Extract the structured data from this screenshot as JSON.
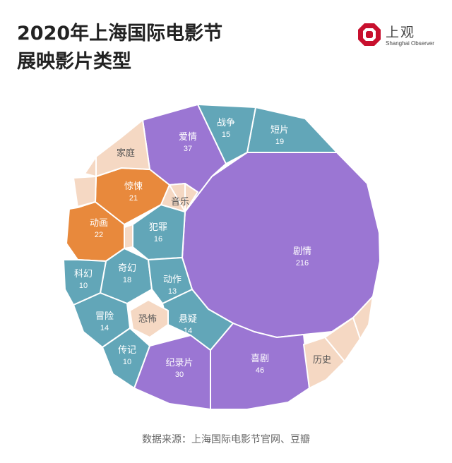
{
  "title": {
    "line1": "2020年上海国际电影节",
    "line2": "展映影片类型"
  },
  "logo": {
    "name": "上观",
    "subtitle": "Shanghai Observer"
  },
  "source": "数据来源：上海国际电影节官网、豆瓣",
  "colors": {
    "purple": "#9b76d3",
    "teal": "#62a6b8",
    "orange": "#e8893c",
    "peach": "#f5d8c3",
    "outline": "#ffffff",
    "label": "#ffffff",
    "peach_label": "#555555",
    "logo_red": "#c8102e"
  },
  "chart_data": {
    "type": "voronoi-treemap",
    "cells": [
      {
        "name": "剧情",
        "value": 216,
        "color": "purple"
      },
      {
        "name": "喜剧",
        "value": 46,
        "color": "purple"
      },
      {
        "name": "爱情",
        "value": 37,
        "color": "purple"
      },
      {
        "name": "纪录片",
        "value": 30,
        "color": "purple"
      },
      {
        "name": "动画",
        "value": 22,
        "color": "orange"
      },
      {
        "name": "惊悚",
        "value": 21,
        "color": "orange"
      },
      {
        "name": "短片",
        "value": 19,
        "color": "teal"
      },
      {
        "name": "奇幻",
        "value": 18,
        "color": "teal"
      },
      {
        "name": "犯罪",
        "value": 16,
        "color": "teal"
      },
      {
        "name": "战争",
        "value": 15,
        "color": "teal"
      },
      {
        "name": "冒险",
        "value": 14,
        "color": "teal"
      },
      {
        "name": "悬疑",
        "value": 14,
        "color": "teal"
      },
      {
        "name": "动作",
        "value": 13,
        "color": "teal"
      },
      {
        "name": "科幻",
        "value": 10,
        "color": "teal"
      },
      {
        "name": "传记",
        "value": 10,
        "color": "teal"
      },
      {
        "name": "家庭",
        "value": null,
        "color": "peach"
      },
      {
        "name": "音乐",
        "value": null,
        "color": "peach"
      },
      {
        "name": "恐怖",
        "value": null,
        "color": "peach"
      },
      {
        "name": "历史",
        "value": null,
        "color": "peach"
      },
      {
        "name": "",
        "value": null,
        "color": "peach"
      },
      {
        "name": "",
        "value": null,
        "color": "peach"
      },
      {
        "name": "",
        "value": null,
        "color": "peach"
      },
      {
        "name": "",
        "value": null,
        "color": "peach"
      },
      {
        "name": "",
        "value": null,
        "color": "peach"
      },
      {
        "name": "",
        "value": null,
        "color": "peach"
      },
      {
        "name": "",
        "value": null,
        "color": "peach"
      }
    ]
  }
}
